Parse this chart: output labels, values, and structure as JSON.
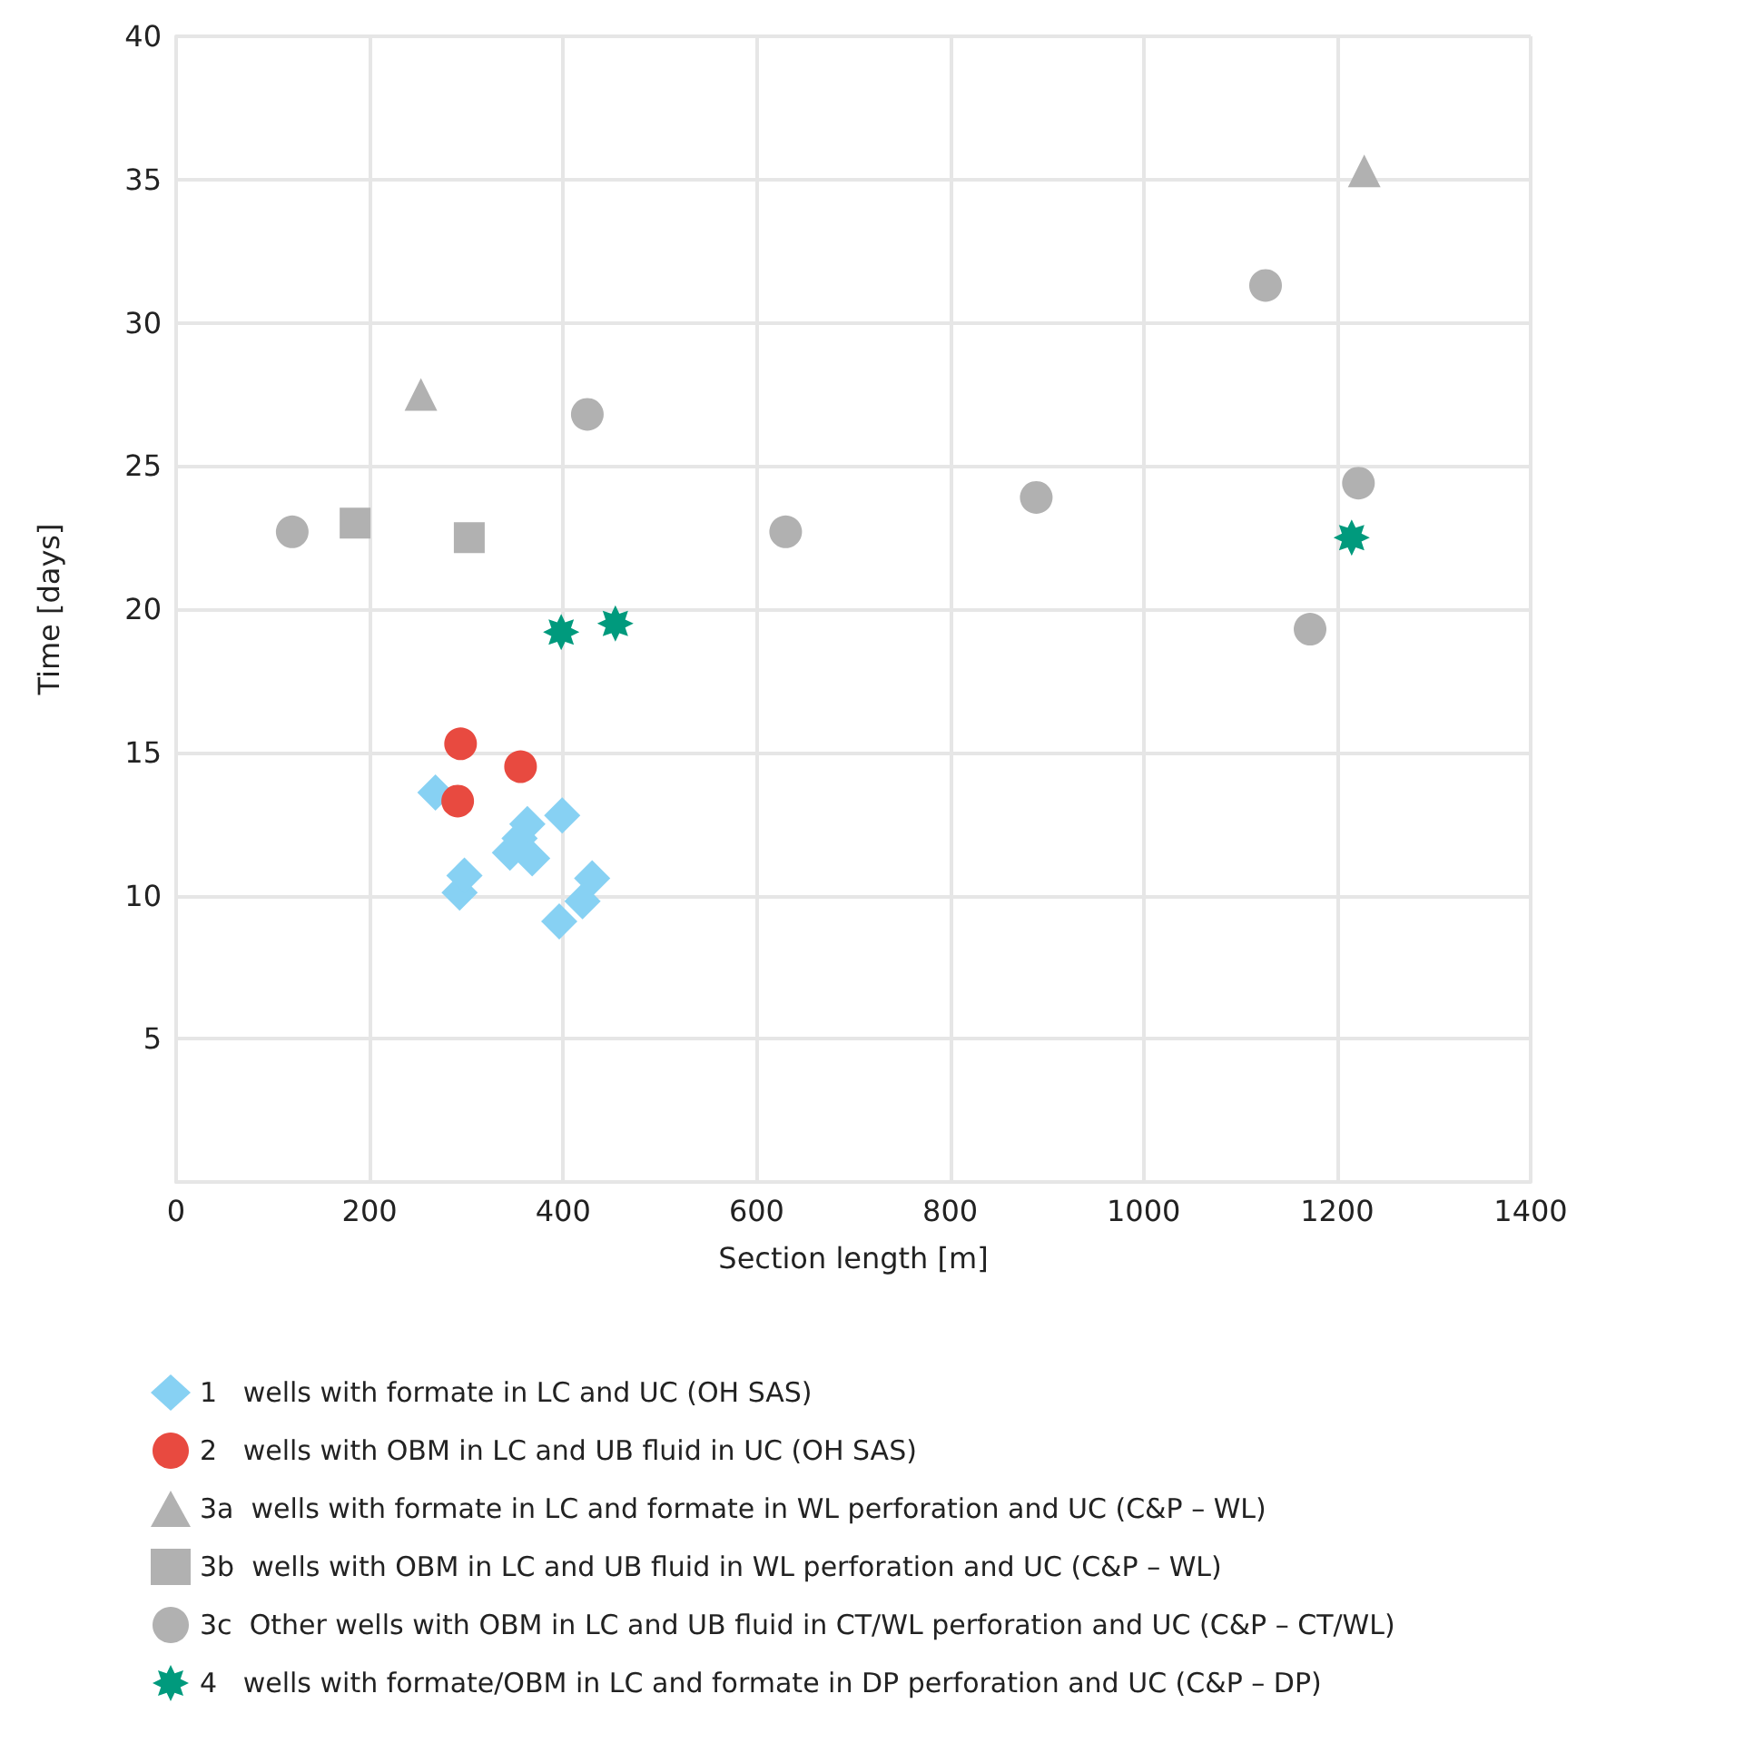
{
  "chart_data": {
    "type": "scatter",
    "xlabel": "Section length [m]",
    "ylabel": "Time [days]",
    "xlim": [
      0,
      1400
    ],
    "xticks": [
      0,
      200,
      400,
      600,
      800,
      1000,
      1200,
      1400
    ],
    "ylim": [
      0,
      40
    ],
    "yticks": [
      5,
      10,
      15,
      20,
      25,
      30,
      35,
      40
    ],
    "grid": true,
    "legend": "bottom",
    "series": [
      {
        "name": "1   wells with formate in LC and UC (OH SAS)",
        "color": "#87d1f3",
        "marker": "diamond",
        "x": [
          268,
          293,
          298,
          345,
          355,
          363,
          368,
          399,
          396,
          430,
          420
        ],
        "values": [
          13.6,
          10.1,
          10.7,
          11.5,
          12,
          12.5,
          11.3,
          12.8,
          9.1,
          10.6,
          9.8
        ]
      },
      {
        "name": "2   wells with OBM in LC and UB fluid in UC (OH SAS)",
        "color": "#e84a40",
        "marker": "circle",
        "x": [
          294,
          291,
          356
        ],
        "values": [
          15.3,
          13.3,
          14.5
        ]
      },
      {
        "name": "3a  wells with formate in LC and formate in WL perforation and UC (C&P – WL)",
        "color": "#b1b1b1",
        "marker": "triangle",
        "x": [
          253,
          1228
        ],
        "values": [
          27.5,
          35.3
        ]
      },
      {
        "name": "3b  wells with OBM in LC and UB fluid in WL perforation and UC (C&P – WL)",
        "color": "#b1b1b1",
        "marker": "square",
        "x": [
          185,
          303
        ],
        "values": [
          23,
          22.5
        ]
      },
      {
        "name": "3c  Other wells with OBM in LC and UB fluid in CT/WL perforation and UC (C&P – CT/WL)",
        "color": "#b1b1b1",
        "marker": "circle",
        "x": [
          120,
          425,
          630,
          889,
          1126,
          1222,
          1172
        ],
        "values": [
          22.7,
          26.8,
          22.7,
          23.9,
          31.3,
          24.4,
          19.3
        ]
      },
      {
        "name": "4   wells with formate/OBM in LC and formate in DP perforation and UC (C&P – DP)",
        "color": "#009a7d",
        "marker": "star",
        "x": [
          398,
          454,
          1215
        ],
        "values": [
          19.2,
          19.5,
          22.5
        ]
      }
    ]
  }
}
